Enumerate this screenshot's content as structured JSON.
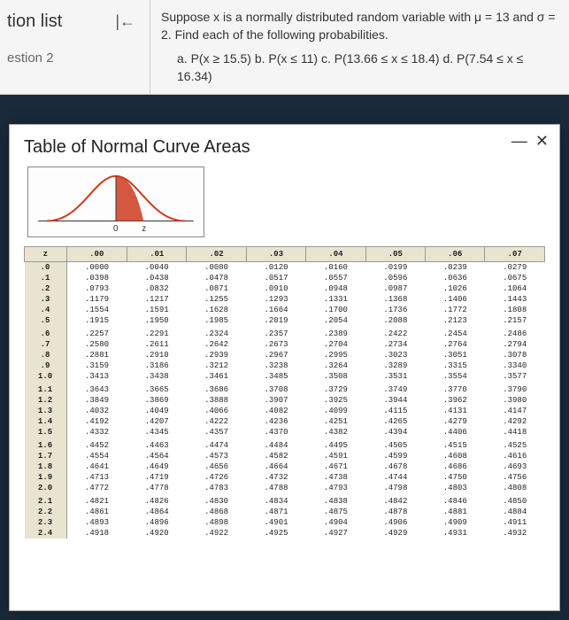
{
  "nav": {
    "title": "tion list",
    "collapse_icon": "|←",
    "question_label": "estion 2"
  },
  "problem": {
    "prompt": "Suppose x is a normally distributed random variable with μ = 13 and σ = 2. Find each of the following probabilities.",
    "parts": "a. P(x ≥ 15.5)   b. P(x ≤ 11)   c. P(13.66 ≤ x ≤ 18.4)   d. P(7.54 ≤ x ≤ 16.34)"
  },
  "modal": {
    "title": "Table of Normal Curve Areas",
    "close": "—  ✕"
  },
  "curve": {
    "stroke": "#cc3b1f",
    "axis": "#333",
    "labels": [
      "0",
      "z"
    ]
  },
  "table": {
    "head": [
      "z",
      ".00",
      ".01",
      ".02",
      ".03",
      ".04",
      ".05",
      ".06",
      ".07"
    ],
    "rows": [
      [
        ".0",
        ".0000",
        ".0040",
        ".0080",
        ".0120",
        ".0160",
        ".0199",
        ".0239",
        ".0279"
      ],
      [
        ".1",
        ".0398",
        ".0438",
        ".0478",
        ".0517",
        ".0557",
        ".0596",
        ".0636",
        ".0675"
      ],
      [
        ".2",
        ".0793",
        ".0832",
        ".0871",
        ".0910",
        ".0948",
        ".0987",
        ".1026",
        ".1064"
      ],
      [
        ".3",
        ".1179",
        ".1217",
        ".1255",
        ".1293",
        ".1331",
        ".1368",
        ".1406",
        ".1443"
      ],
      [
        ".4",
        ".1554",
        ".1591",
        ".1628",
        ".1664",
        ".1700",
        ".1736",
        ".1772",
        ".1808"
      ],
      [
        ".5",
        ".1915",
        ".1950",
        ".1985",
        ".2019",
        ".2054",
        ".2088",
        ".2123",
        ".2157"
      ],
      [
        ".6",
        ".2257",
        ".2291",
        ".2324",
        ".2357",
        ".2389",
        ".2422",
        ".2454",
        ".2486"
      ],
      [
        ".7",
        ".2580",
        ".2611",
        ".2642",
        ".2673",
        ".2704",
        ".2734",
        ".2764",
        ".2794"
      ],
      [
        ".8",
        ".2881",
        ".2910",
        ".2939",
        ".2967",
        ".2995",
        ".3023",
        ".3051",
        ".3078"
      ],
      [
        ".9",
        ".3159",
        ".3186",
        ".3212",
        ".3238",
        ".3264",
        ".3289",
        ".3315",
        ".3340"
      ],
      [
        "1.0",
        ".3413",
        ".3438",
        ".3461",
        ".3485",
        ".3508",
        ".3531",
        ".3554",
        ".3577"
      ],
      [
        "1.1",
        ".3643",
        ".3665",
        ".3686",
        ".3708",
        ".3729",
        ".3749",
        ".3770",
        ".3790"
      ],
      [
        "1.2",
        ".3849",
        ".3869",
        ".3888",
        ".3907",
        ".3925",
        ".3944",
        ".3962",
        ".3980"
      ],
      [
        "1.3",
        ".4032",
        ".4049",
        ".4066",
        ".4082",
        ".4099",
        ".4115",
        ".4131",
        ".4147"
      ],
      [
        "1.4",
        ".4192",
        ".4207",
        ".4222",
        ".4236",
        ".4251",
        ".4265",
        ".4279",
        ".4292"
      ],
      [
        "1.5",
        ".4332",
        ".4345",
        ".4357",
        ".4370",
        ".4382",
        ".4394",
        ".4406",
        ".4418"
      ],
      [
        "1.6",
        ".4452",
        ".4463",
        ".4474",
        ".4484",
        ".4495",
        ".4505",
        ".4515",
        ".4525"
      ],
      [
        "1.7",
        ".4554",
        ".4564",
        ".4573",
        ".4582",
        ".4591",
        ".4599",
        ".4608",
        ".4616"
      ],
      [
        "1.8",
        ".4641",
        ".4649",
        ".4656",
        ".4664",
        ".4671",
        ".4678",
        ".4686",
        ".4693"
      ],
      [
        "1.9",
        ".4713",
        ".4719",
        ".4726",
        ".4732",
        ".4738",
        ".4744",
        ".4750",
        ".4756"
      ],
      [
        "2.0",
        ".4772",
        ".4778",
        ".4783",
        ".4788",
        ".4793",
        ".4798",
        ".4803",
        ".4808"
      ],
      [
        "2.1",
        ".4821",
        ".4826",
        ".4830",
        ".4834",
        ".4838",
        ".4842",
        ".4846",
        ".4850"
      ],
      [
        "2.2",
        ".4861",
        ".4864",
        ".4868",
        ".4871",
        ".4875",
        ".4878",
        ".4881",
        ".4884"
      ],
      [
        "2.3",
        ".4893",
        ".4896",
        ".4898",
        ".4901",
        ".4904",
        ".4906",
        ".4909",
        ".4911"
      ],
      [
        "2.4",
        ".4918",
        ".4920",
        ".4922",
        ".4925",
        ".4927",
        ".4929",
        ".4931",
        ".4932"
      ]
    ],
    "group_breaks": [
      6,
      11,
      16,
      21
    ]
  }
}
